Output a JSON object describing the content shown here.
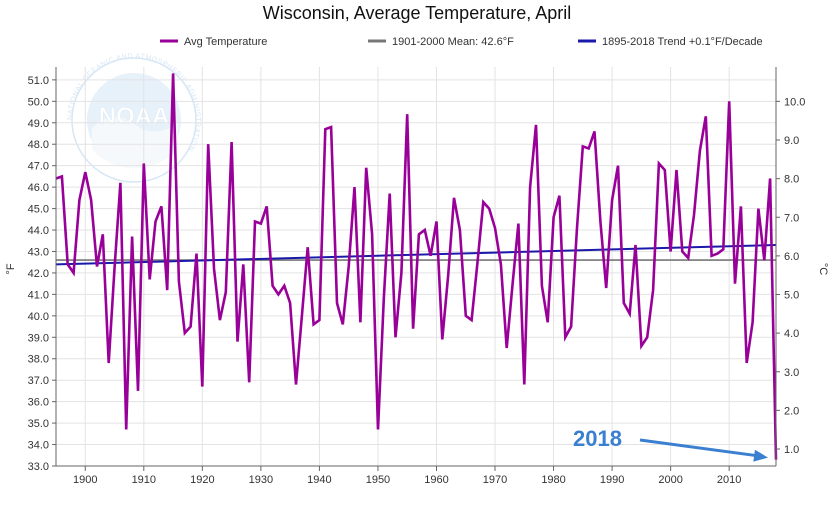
{
  "chart_data": {
    "type": "line",
    "title": "Wisconsin, Average Temperature, April",
    "ylabel": "°F",
    "y2label": "°C",
    "xlim": [
      1895,
      2018
    ],
    "ylim": [
      33.0,
      51.6
    ],
    "y2lim": [
      0.56,
      10.89
    ],
    "x_ticks": [
      1900,
      1910,
      1920,
      1930,
      1940,
      1950,
      1960,
      1970,
      1980,
      1990,
      2000,
      2010
    ],
    "y_ticks": [
      "33.0",
      "34.0",
      "35.0",
      "36.0",
      "37.0",
      "38.0",
      "39.0",
      "40.0",
      "41.0",
      "42.0",
      "43.0",
      "44.0",
      "45.0",
      "46.0",
      "47.0",
      "48.0",
      "49.0",
      "50.0",
      "51.0"
    ],
    "y2_ticks": [
      "1.0",
      "2.0",
      "3.0",
      "4.0",
      "5.0",
      "6.0",
      "7.0",
      "8.0",
      "9.0",
      "10.0"
    ],
    "grid": true,
    "legend_position": "top",
    "series": [
      {
        "name": "Avg Temperature",
        "color": "#990099",
        "x": [
          1895,
          1896,
          1897,
          1898,
          1899,
          1900,
          1901,
          1902,
          1903,
          1904,
          1905,
          1906,
          1907,
          1908,
          1909,
          1910,
          1911,
          1912,
          1913,
          1914,
          1915,
          1916,
          1917,
          1918,
          1919,
          1920,
          1921,
          1922,
          1923,
          1924,
          1925,
          1926,
          1927,
          1928,
          1929,
          1930,
          1931,
          1932,
          1933,
          1934,
          1935,
          1936,
          1937,
          1938,
          1939,
          1940,
          1941,
          1942,
          1943,
          1944,
          1945,
          1946,
          1947,
          1948,
          1949,
          1950,
          1951,
          1952,
          1953,
          1954,
          1955,
          1956,
          1957,
          1958,
          1959,
          1960,
          1961,
          1962,
          1963,
          1964,
          1965,
          1966,
          1967,
          1968,
          1969,
          1970,
          1971,
          1972,
          1973,
          1974,
          1975,
          1976,
          1977,
          1978,
          1979,
          1980,
          1981,
          1982,
          1983,
          1984,
          1985,
          1986,
          1987,
          1988,
          1989,
          1990,
          1991,
          1992,
          1993,
          1994,
          1995,
          1996,
          1997,
          1998,
          1999,
          2000,
          2001,
          2002,
          2003,
          2004,
          2005,
          2006,
          2007,
          2008,
          2009,
          2010,
          2011,
          2012,
          2013,
          2014,
          2015,
          2016,
          2017,
          2018
        ],
        "values": [
          46.4,
          46.5,
          42.4,
          42.0,
          45.4,
          46.7,
          45.4,
          42.3,
          43.8,
          37.8,
          42.2,
          46.2,
          34.7,
          43.7,
          36.5,
          47.1,
          41.7,
          44.4,
          45.1,
          41.2,
          51.3,
          41.6,
          39.2,
          39.5,
          42.9,
          36.7,
          48.0,
          42.2,
          39.8,
          41.1,
          48.1,
          38.8,
          42.4,
          36.9,
          44.4,
          44.3,
          45.1,
          41.4,
          41.0,
          41.4,
          40.6,
          36.8,
          40.0,
          43.2,
          39.6,
          39.8,
          48.7,
          48.8,
          40.6,
          39.6,
          42.3,
          46.0,
          39.7,
          46.9,
          43.8,
          34.7,
          40.8,
          45.7,
          39.0,
          42.0,
          49.4,
          39.4,
          43.8,
          44.0,
          42.8,
          44.4,
          38.9,
          41.9,
          45.5,
          44.0,
          40.0,
          39.8,
          42.5,
          45.3,
          45.0,
          44.1,
          42.4,
          38.5,
          41.5,
          44.3,
          36.8,
          46.0,
          48.9,
          41.4,
          39.7,
          44.6,
          45.6,
          39.0,
          39.5,
          44.1,
          47.9,
          47.8,
          48.6,
          44.4,
          41.3,
          45.4,
          47.0,
          40.6,
          40.1,
          43.3,
          38.6,
          39.0,
          41.2,
          47.1,
          46.8,
          43.0,
          46.8,
          43.0,
          42.7,
          44.7,
          47.7,
          49.3,
          42.8,
          42.9,
          43.1,
          50.0,
          41.5,
          45.1,
          37.8,
          39.7,
          45.0,
          42.6,
          46.4,
          33.3
        ]
      },
      {
        "name": "1901-2000 Mean: 42.6°F",
        "color": "#777777",
        "x": [
          1895,
          2018
        ],
        "values": [
          42.6,
          42.6
        ]
      },
      {
        "name": "1895-2018 Trend +0.1°F/Decade",
        "color": "#1a1aaa",
        "x": [
          1895,
          2018
        ],
        "values": [
          42.4,
          43.3
        ]
      }
    ],
    "annotations": [
      {
        "text": "2018",
        "x": 2018,
        "y": 33.3,
        "color": "#3a7fd0"
      }
    ]
  },
  "colors": {
    "grid": "#e3e3e3",
    "axis": "#666666",
    "watermark": "#c9def2"
  },
  "watermark": {
    "logo_text": "NOAA",
    "ring_text": "NATIONAL OCEANIC AND ATMOSPHERIC ADMINISTRATION"
  }
}
